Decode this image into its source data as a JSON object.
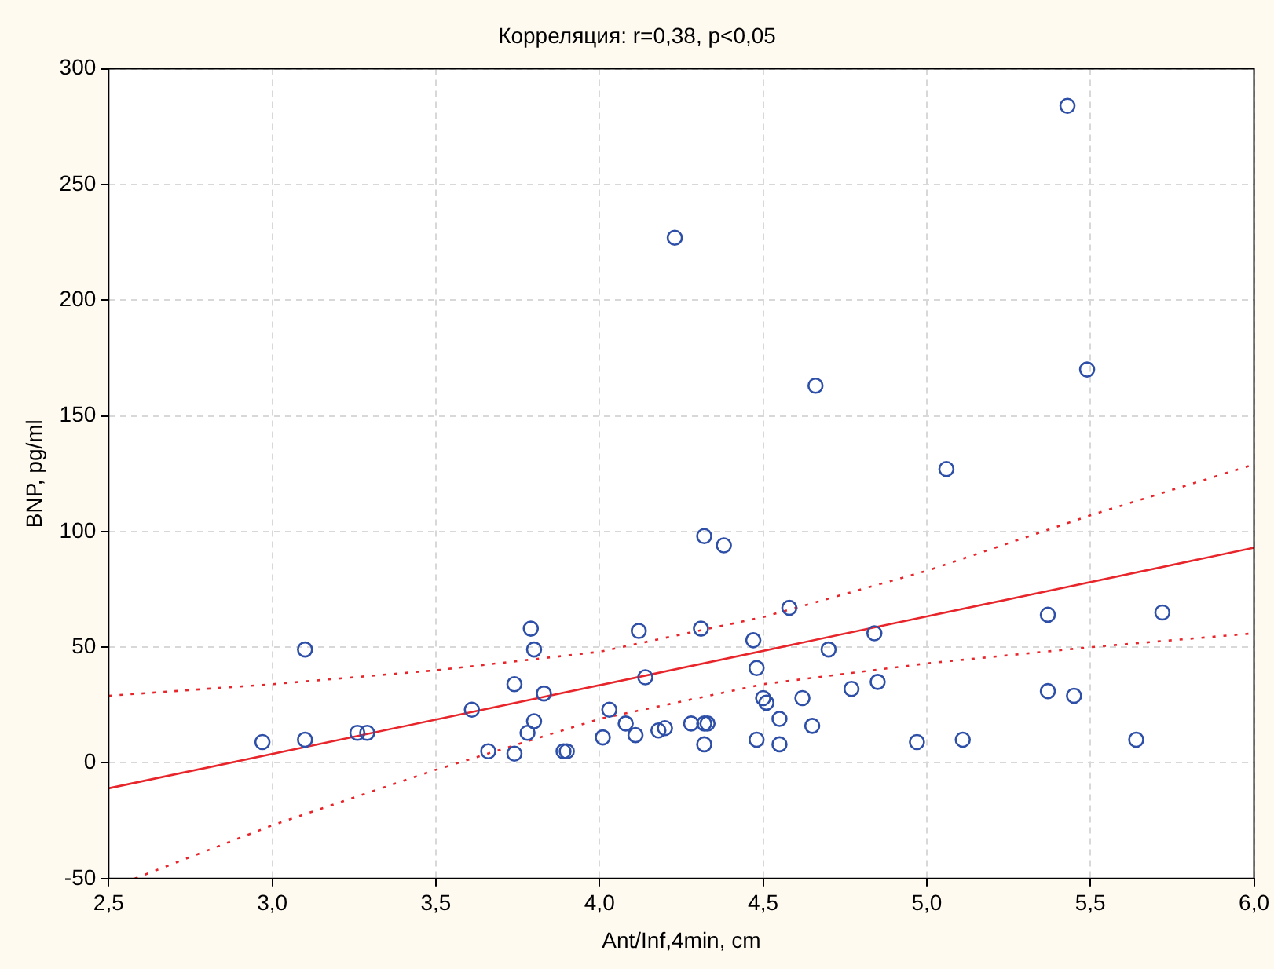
{
  "chart_data": {
    "type": "scatter",
    "title": "Корреляция: r=0,38, p<0,05",
    "xlabel": "Ant/Inf,4min, cm",
    "ylabel": "BNP, pg/ml",
    "xlim": [
      2.5,
      6.0
    ],
    "xticks": [
      {
        "value": 2.5,
        "label": "2,5"
      },
      {
        "value": 3.0,
        "label": "3,0"
      },
      {
        "value": 3.5,
        "label": "3,5"
      },
      {
        "value": 4.0,
        "label": "4,0"
      },
      {
        "value": 4.5,
        "label": "4,5"
      },
      {
        "value": 5.0,
        "label": "5,0"
      },
      {
        "value": 5.5,
        "label": "5,5"
      },
      {
        "value": 6.0,
        "label": "6,0"
      }
    ],
    "ylim": [
      -50,
      300
    ],
    "yticks": [
      -50,
      0,
      50,
      100,
      150,
      200,
      250,
      300
    ],
    "grid": true,
    "legend": false,
    "series": [
      {
        "type": "scatter",
        "marker": "circle",
        "color": "#2e4fa8",
        "x": [
          2.97,
          3.1,
          3.1,
          3.26,
          3.29,
          3.61,
          3.66,
          3.74,
          3.74,
          3.78,
          3.79,
          3.8,
          3.8,
          3.83,
          3.89,
          3.9,
          4.01,
          4.03,
          4.08,
          4.11,
          4.12,
          4.14,
          4.18,
          4.2,
          4.23,
          4.28,
          4.31,
          4.32,
          4.32,
          4.33,
          4.32,
          4.38,
          4.47,
          4.48,
          4.48,
          4.5,
          4.51,
          4.55,
          4.55,
          4.58,
          4.62,
          4.65,
          4.66,
          4.7,
          4.77,
          4.84,
          4.85,
          4.97,
          5.06,
          5.11,
          5.37,
          5.37,
          5.43,
          5.45,
          5.49,
          5.64,
          5.72
        ],
        "values": [
          9,
          10,
          49,
          13,
          13,
          23,
          5,
          4,
          34,
          13,
          58,
          49,
          18,
          30,
          5,
          5,
          11,
          23,
          17,
          12,
          57,
          37,
          14,
          15,
          227,
          17,
          58,
          98,
          17,
          17,
          8,
          94,
          53,
          41,
          10,
          28,
          26,
          19,
          8,
          67,
          28,
          16,
          163,
          49,
          32,
          56,
          35,
          9,
          127,
          10,
          64,
          31,
          284,
          29,
          170,
          10,
          65
        ]
      },
      {
        "type": "line",
        "marker": "none",
        "line_style": "solid",
        "color": "#e8252a",
        "x": [
          2.5,
          6.0
        ],
        "values": [
          -11,
          93
        ]
      },
      {
        "type": "line",
        "marker": "none",
        "line_style": "dotted",
        "color": "#e8252a",
        "x": [
          2.5,
          3.0,
          3.5,
          4.0,
          4.5,
          5.0,
          5.5,
          6.0
        ],
        "values": [
          29,
          34,
          40,
          48,
          63,
          83,
          107,
          129
        ]
      },
      {
        "type": "line",
        "marker": "none",
        "line_style": "dotted",
        "color": "#e8252a",
        "x": [
          2.58,
          3.0,
          3.5,
          4.0,
          4.5,
          5.0,
          5.5,
          6.0
        ],
        "values": [
          -50,
          -27,
          -3,
          19,
          34,
          43,
          50,
          56
        ]
      }
    ]
  }
}
